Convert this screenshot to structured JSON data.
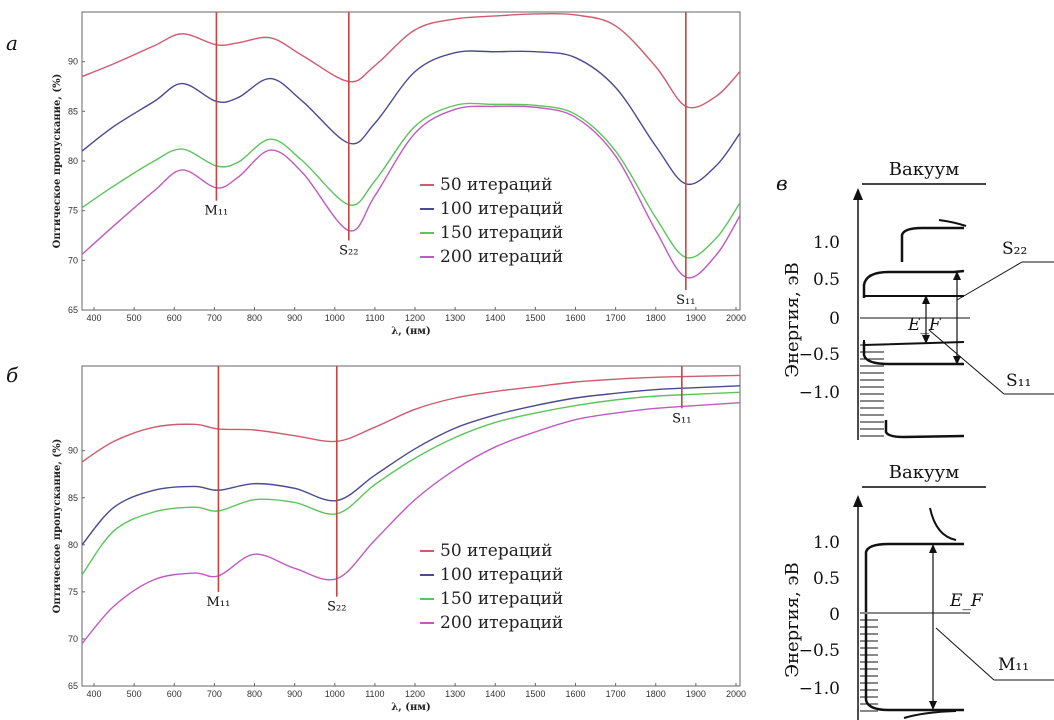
{
  "panel_labels": {
    "a": "а",
    "b": "б",
    "c": "в"
  },
  "chart_data": [
    {
      "type": "line",
      "panel": "а",
      "xlabel": "λ, (нм)",
      "ylabel": "Оптическое пропускание, (%)",
      "xlim": [
        370,
        2010
      ],
      "ylim": [
        65,
        95
      ],
      "xticks": [
        400,
        500,
        600,
        700,
        800,
        900,
        1000,
        1100,
        1200,
        1300,
        1400,
        1500,
        1600,
        1700,
        1800,
        1900,
        2000
      ],
      "yticks": [
        65,
        70,
        75,
        80,
        85,
        90
      ],
      "legend_position": "center-right",
      "vlines": [
        705,
        1035,
        1875
      ],
      "annotations": [
        {
          "text": "M₁₁",
          "x": 705,
          "y": 76
        },
        {
          "text": "S₂₂",
          "x": 1035,
          "y": 72
        },
        {
          "text": "S₁₁",
          "x": 1875,
          "y": 67
        }
      ],
      "series": [
        {
          "name": "50 итераций",
          "color": "#d05a6e",
          "x": [
            370,
            450,
            550,
            620,
            705,
            760,
            840,
            920,
            1035,
            1100,
            1200,
            1300,
            1400,
            1500,
            1600,
            1700,
            1800,
            1875,
            1950,
            2010
          ],
          "y": [
            88.5,
            89.8,
            91.6,
            92.8,
            91.7,
            91.9,
            92.4,
            90.6,
            88.0,
            89.6,
            93.2,
            94.3,
            94.6,
            94.8,
            94.7,
            93.6,
            89.5,
            85.5,
            86.5,
            89.0
          ]
        },
        {
          "name": "100 итераций",
          "color": "#4a4a90",
          "x": [
            370,
            450,
            550,
            620,
            705,
            760,
            840,
            920,
            1035,
            1100,
            1200,
            1300,
            1400,
            1500,
            1600,
            1700,
            1800,
            1875,
            1950,
            2010
          ],
          "y": [
            81.0,
            83.5,
            86.0,
            87.8,
            86.0,
            86.4,
            88.3,
            86.0,
            81.8,
            83.8,
            89.0,
            90.9,
            91.0,
            91.0,
            90.4,
            87.4,
            81.5,
            77.7,
            79.5,
            82.8
          ]
        },
        {
          "name": "150 итераций",
          "color": "#5cc45c",
          "x": [
            370,
            450,
            550,
            620,
            705,
            760,
            840,
            920,
            1035,
            1100,
            1200,
            1300,
            1400,
            1500,
            1600,
            1700,
            1800,
            1875,
            1950,
            2010
          ],
          "y": [
            75.3,
            77.5,
            80.0,
            81.2,
            79.5,
            79.9,
            82.2,
            80.0,
            75.6,
            78.0,
            83.5,
            85.6,
            85.7,
            85.6,
            84.7,
            81.0,
            74.3,
            70.3,
            72.2,
            75.8
          ]
        },
        {
          "name": "200 итераций",
          "color": "#c05ac0",
          "x": [
            370,
            450,
            550,
            620,
            705,
            760,
            840,
            920,
            1035,
            1100,
            1200,
            1300,
            1400,
            1500,
            1600,
            1700,
            1800,
            1875,
            1950,
            2010
          ],
          "y": [
            70.6,
            73.5,
            77.0,
            79.1,
            77.3,
            78.4,
            81.1,
            78.8,
            73.0,
            76.5,
            82.8,
            85.2,
            85.5,
            85.4,
            84.4,
            80.5,
            73.0,
            68.3,
            70.5,
            74.5
          ]
        }
      ]
    },
    {
      "type": "line",
      "panel": "б",
      "xlabel": "λ, (нм)",
      "ylabel": "Оптическое пропускание, (%)",
      "xlim": [
        370,
        2010
      ],
      "ylim": [
        65,
        99
      ],
      "xticks": [
        400,
        500,
        600,
        700,
        800,
        900,
        1000,
        1100,
        1200,
        1300,
        1400,
        1500,
        1600,
        1700,
        1800,
        1900,
        2000
      ],
      "yticks": [
        65,
        70,
        75,
        80,
        85,
        90
      ],
      "legend_position": "bottom-right",
      "vlines": [
        710,
        1005,
        1865
      ],
      "annotations": [
        {
          "text": "M₁₁",
          "x": 710,
          "y": 75
        },
        {
          "text": "S₂₂",
          "x": 1005,
          "y": 74.5
        },
        {
          "text": "S₁₁",
          "x": 1865,
          "y": 94.5
        }
      ],
      "series": [
        {
          "name": "50 итераций",
          "color": "#d05a6e",
          "x": [
            370,
            450,
            550,
            650,
            710,
            800,
            900,
            1005,
            1100,
            1200,
            1300,
            1400,
            1500,
            1600,
            1700,
            1800,
            1900,
            2010
          ],
          "y": [
            88.8,
            91.0,
            92.5,
            92.8,
            92.3,
            92.2,
            91.6,
            91.0,
            92.5,
            94.4,
            95.6,
            96.3,
            96.8,
            97.3,
            97.6,
            97.8,
            97.9,
            98.0
          ]
        },
        {
          "name": "100 итераций",
          "color": "#4a4a90",
          "x": [
            370,
            450,
            550,
            650,
            710,
            800,
            900,
            1005,
            1100,
            1200,
            1300,
            1400,
            1500,
            1600,
            1700,
            1800,
            1900,
            2010
          ],
          "y": [
            80.0,
            84.0,
            85.8,
            86.2,
            85.8,
            86.5,
            86.0,
            84.7,
            87.4,
            90.2,
            92.4,
            93.8,
            94.8,
            95.6,
            96.1,
            96.5,
            96.7,
            96.9
          ]
        },
        {
          "name": "150 итераций",
          "color": "#5cc45c",
          "x": [
            370,
            450,
            550,
            650,
            710,
            800,
            900,
            1005,
            1100,
            1200,
            1300,
            1400,
            1500,
            1600,
            1700,
            1800,
            1900,
            2010
          ],
          "y": [
            76.8,
            81.5,
            83.5,
            84.0,
            83.6,
            84.8,
            84.5,
            83.3,
            86.4,
            89.2,
            91.4,
            93.0,
            94.0,
            94.8,
            95.4,
            95.8,
            96.0,
            96.2
          ]
        },
        {
          "name": "200 итераций",
          "color": "#c05ac0",
          "x": [
            370,
            450,
            550,
            650,
            710,
            800,
            900,
            1005,
            1100,
            1200,
            1300,
            1400,
            1500,
            1600,
            1700,
            1800,
            1900,
            2010
          ],
          "y": [
            69.5,
            73.5,
            76.3,
            77.0,
            76.7,
            79.0,
            77.5,
            76.4,
            80.5,
            84.8,
            88.0,
            90.4,
            92.0,
            93.3,
            94.0,
            94.5,
            94.8,
            95.1
          ]
        }
      ]
    },
    {
      "type": "diagram",
      "panel": "в",
      "diagrams": [
        {
          "title": "Вакуум",
          "ylabel": "Энергия, эВ",
          "yticks": [
            "1.0",
            "0.5",
            "0",
            "−0.5",
            "−1.0"
          ],
          "fermi_label": "E_F",
          "transition_labels": [
            "S₂₂",
            "S₁₁"
          ]
        },
        {
          "title": "Вакуум",
          "ylabel": "Энергия, эВ",
          "yticks": [
            "1.0",
            "0.5",
            "0",
            "−0.5",
            "−1.0"
          ],
          "fermi_label": "E_F",
          "transition_labels": [
            "M₁₁"
          ]
        }
      ]
    }
  ]
}
